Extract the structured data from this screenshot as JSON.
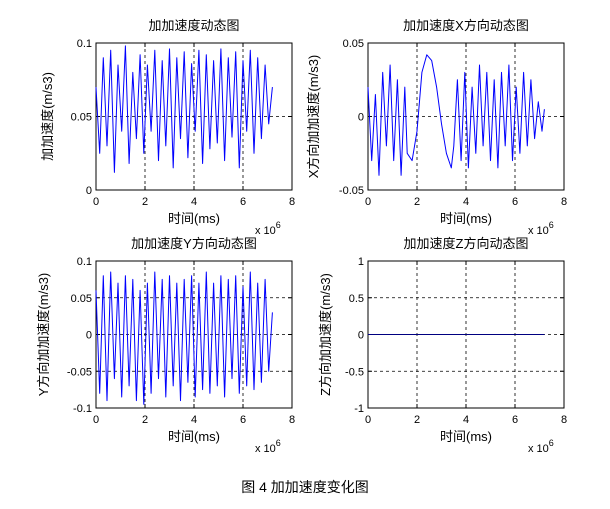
{
  "caption": "图 4  加加速度变化图",
  "chart_data": [
    {
      "type": "line",
      "title": "加加速度动态图",
      "xlabel": "时间(ms)",
      "ylabel": "加加速度(m/s3)",
      "x_multiplier": "x 10",
      "x_multiplier_exp": "6",
      "xlim": [
        0,
        8
      ],
      "ylim": [
        0,
        0.1
      ],
      "xticks": [
        0,
        2,
        4,
        6,
        8
      ],
      "xtick_labels": [
        "0",
        "2",
        "4",
        "6",
        "8"
      ],
      "yticks": [
        0,
        0.05,
        0.1
      ],
      "ytick_labels": [
        "0",
        "0.05",
        "0.1"
      ],
      "grid": "dashed at x = 2, 4, 6 and y = 0.05",
      "series": [
        {
          "color": "#0000ff",
          "x": [
            0.0,
            0.15,
            0.3,
            0.45,
            0.6,
            0.75,
            0.9,
            1.05,
            1.2,
            1.35,
            1.5,
            1.65,
            1.8,
            1.95,
            2.1,
            2.25,
            2.4,
            2.55,
            2.7,
            2.85,
            3.0,
            3.15,
            3.3,
            3.45,
            3.6,
            3.75,
            3.9,
            4.05,
            4.2,
            4.35,
            4.5,
            4.65,
            4.8,
            4.95,
            5.1,
            5.25,
            5.4,
            5.55,
            5.7,
            5.85,
            6.0,
            6.15,
            6.3,
            6.45,
            6.6,
            6.75,
            6.9,
            7.05,
            7.2
          ],
          "y": [
            0.07,
            0.025,
            0.09,
            0.03,
            0.095,
            0.012,
            0.085,
            0.04,
            0.098,
            0.018,
            0.08,
            0.035,
            0.092,
            0.025,
            0.085,
            0.04,
            0.095,
            0.02,
            0.088,
            0.03,
            0.096,
            0.015,
            0.09,
            0.035,
            0.094,
            0.022,
            0.086,
            0.04,
            0.095,
            0.018,
            0.092,
            0.028,
            0.088,
            0.032,
            0.096,
            0.02,
            0.09,
            0.036,
            0.094,
            0.015,
            0.088,
            0.04,
            0.095,
            0.025,
            0.09,
            0.035,
            0.085,
            0.045,
            0.07
          ]
        }
      ]
    },
    {
      "type": "line",
      "title": "加加速度X方向动态图",
      "xlabel": "时间(ms)",
      "ylabel": "X方向加加速度(m/s3)",
      "x_multiplier": "x 10",
      "x_multiplier_exp": "6",
      "xlim": [
        0,
        8
      ],
      "ylim": [
        -0.05,
        0.05
      ],
      "xticks": [
        0,
        2,
        4,
        6,
        8
      ],
      "xtick_labels": [
        "0",
        "2",
        "4",
        "6",
        "8"
      ],
      "yticks": [
        -0.05,
        0,
        0.05
      ],
      "ytick_labels": [
        "-0.05",
        "0",
        "0.05"
      ],
      "grid": "dashed at x = 2, 4, 6 and y = 0",
      "series": [
        {
          "color": "#0000ff",
          "x": [
            0.0,
            0.15,
            0.3,
            0.45,
            0.6,
            0.75,
            0.9,
            1.05,
            1.2,
            1.35,
            1.5,
            1.6,
            1.8,
            2.0,
            2.2,
            2.4,
            2.6,
            2.8,
            3.0,
            3.2,
            3.4,
            3.5,
            3.65,
            3.8,
            3.95,
            4.1,
            4.25,
            4.4,
            4.55,
            4.7,
            4.85,
            5.0,
            5.15,
            5.3,
            5.45,
            5.6,
            5.75,
            5.9,
            6.05,
            6.2,
            6.35,
            6.5,
            6.65,
            6.8,
            6.95,
            7.1,
            7.2
          ],
          "y": [
            0.02,
            -0.03,
            0.015,
            -0.04,
            0.03,
            -0.02,
            0.035,
            -0.03,
            0.025,
            -0.04,
            0.02,
            -0.025,
            -0.03,
            -0.01,
            0.03,
            0.042,
            0.038,
            0.02,
            -0.005,
            -0.025,
            -0.035,
            -0.02,
            0.025,
            -0.03,
            0.03,
            -0.035,
            0.02,
            -0.025,
            0.035,
            -0.02,
            0.03,
            -0.03,
            0.025,
            -0.035,
            0.03,
            -0.02,
            0.035,
            -0.03,
            0.02,
            -0.025,
            0.03,
            -0.02,
            0.025,
            -0.015,
            0.01,
            -0.01,
            0.005
          ]
        }
      ]
    },
    {
      "type": "line",
      "title": "加加速度Y方向动态图",
      "xlabel": "时间(ms)",
      "ylabel": "Y方向加加速度(m/s3)",
      "x_multiplier": "x 10",
      "x_multiplier_exp": "6",
      "xlim": [
        0,
        8
      ],
      "ylim": [
        -0.1,
        0.1
      ],
      "xticks": [
        0,
        2,
        4,
        6,
        8
      ],
      "xtick_labels": [
        "0",
        "2",
        "4",
        "6",
        "8"
      ],
      "yticks": [
        -0.1,
        -0.05,
        0,
        0.05,
        0.1
      ],
      "ytick_labels": [
        "-0.1",
        "-0.05",
        "0",
        "0.05",
        "0.1"
      ],
      "grid": "dashed at x = 2, 4, 6 and y = -0.05, 0, 0.05",
      "series": [
        {
          "color": "#0000ff",
          "x": [
            0.0,
            0.15,
            0.3,
            0.45,
            0.6,
            0.75,
            0.9,
            1.05,
            1.2,
            1.35,
            1.5,
            1.65,
            1.8,
            1.95,
            2.1,
            2.25,
            2.4,
            2.55,
            2.7,
            2.85,
            3.0,
            3.15,
            3.3,
            3.45,
            3.6,
            3.75,
            3.9,
            4.05,
            4.2,
            4.35,
            4.5,
            4.65,
            4.8,
            4.95,
            5.1,
            5.25,
            5.4,
            5.55,
            5.7,
            5.85,
            6.0,
            6.15,
            6.3,
            6.45,
            6.6,
            6.75,
            6.9,
            7.05,
            7.2
          ],
          "y": [
            0.06,
            -0.08,
            0.08,
            -0.09,
            0.085,
            -0.06,
            0.07,
            -0.085,
            0.08,
            -0.07,
            0.075,
            -0.09,
            0.06,
            -0.095,
            0.07,
            -0.08,
            0.085,
            -0.06,
            0.075,
            -0.085,
            0.08,
            -0.07,
            0.07,
            -0.09,
            0.075,
            -0.065,
            0.08,
            -0.085,
            0.07,
            -0.075,
            0.085,
            -0.08,
            0.07,
            -0.07,
            0.08,
            -0.085,
            0.075,
            -0.06,
            0.08,
            -0.08,
            0.065,
            -0.07,
            0.085,
            -0.075,
            0.07,
            -0.065,
            0.075,
            -0.05,
            0.03
          ]
        }
      ]
    },
    {
      "type": "line",
      "title": "加加速度Z方向动态图",
      "xlabel": "时间(ms)",
      "ylabel": "Z方向加加速度(m/s3)",
      "x_multiplier": "x 10",
      "x_multiplier_exp": "6",
      "xlim": [
        0,
        8
      ],
      "ylim": [
        -1,
        1
      ],
      "xticks": [
        0,
        2,
        4,
        6,
        8
      ],
      "xtick_labels": [
        "0",
        "2",
        "4",
        "6",
        "8"
      ],
      "yticks": [
        -1,
        -0.5,
        0,
        0.5,
        1
      ],
      "ytick_labels": [
        "-1",
        "-0.5",
        "0",
        "0.5",
        "1"
      ],
      "grid": "dashed at x = 2, 4, 6 and y = -0.5, 0, 0.5",
      "series": [
        {
          "color": "#000080",
          "x": [
            0.0,
            7.2
          ],
          "y": [
            0,
            0
          ]
        }
      ]
    }
  ]
}
